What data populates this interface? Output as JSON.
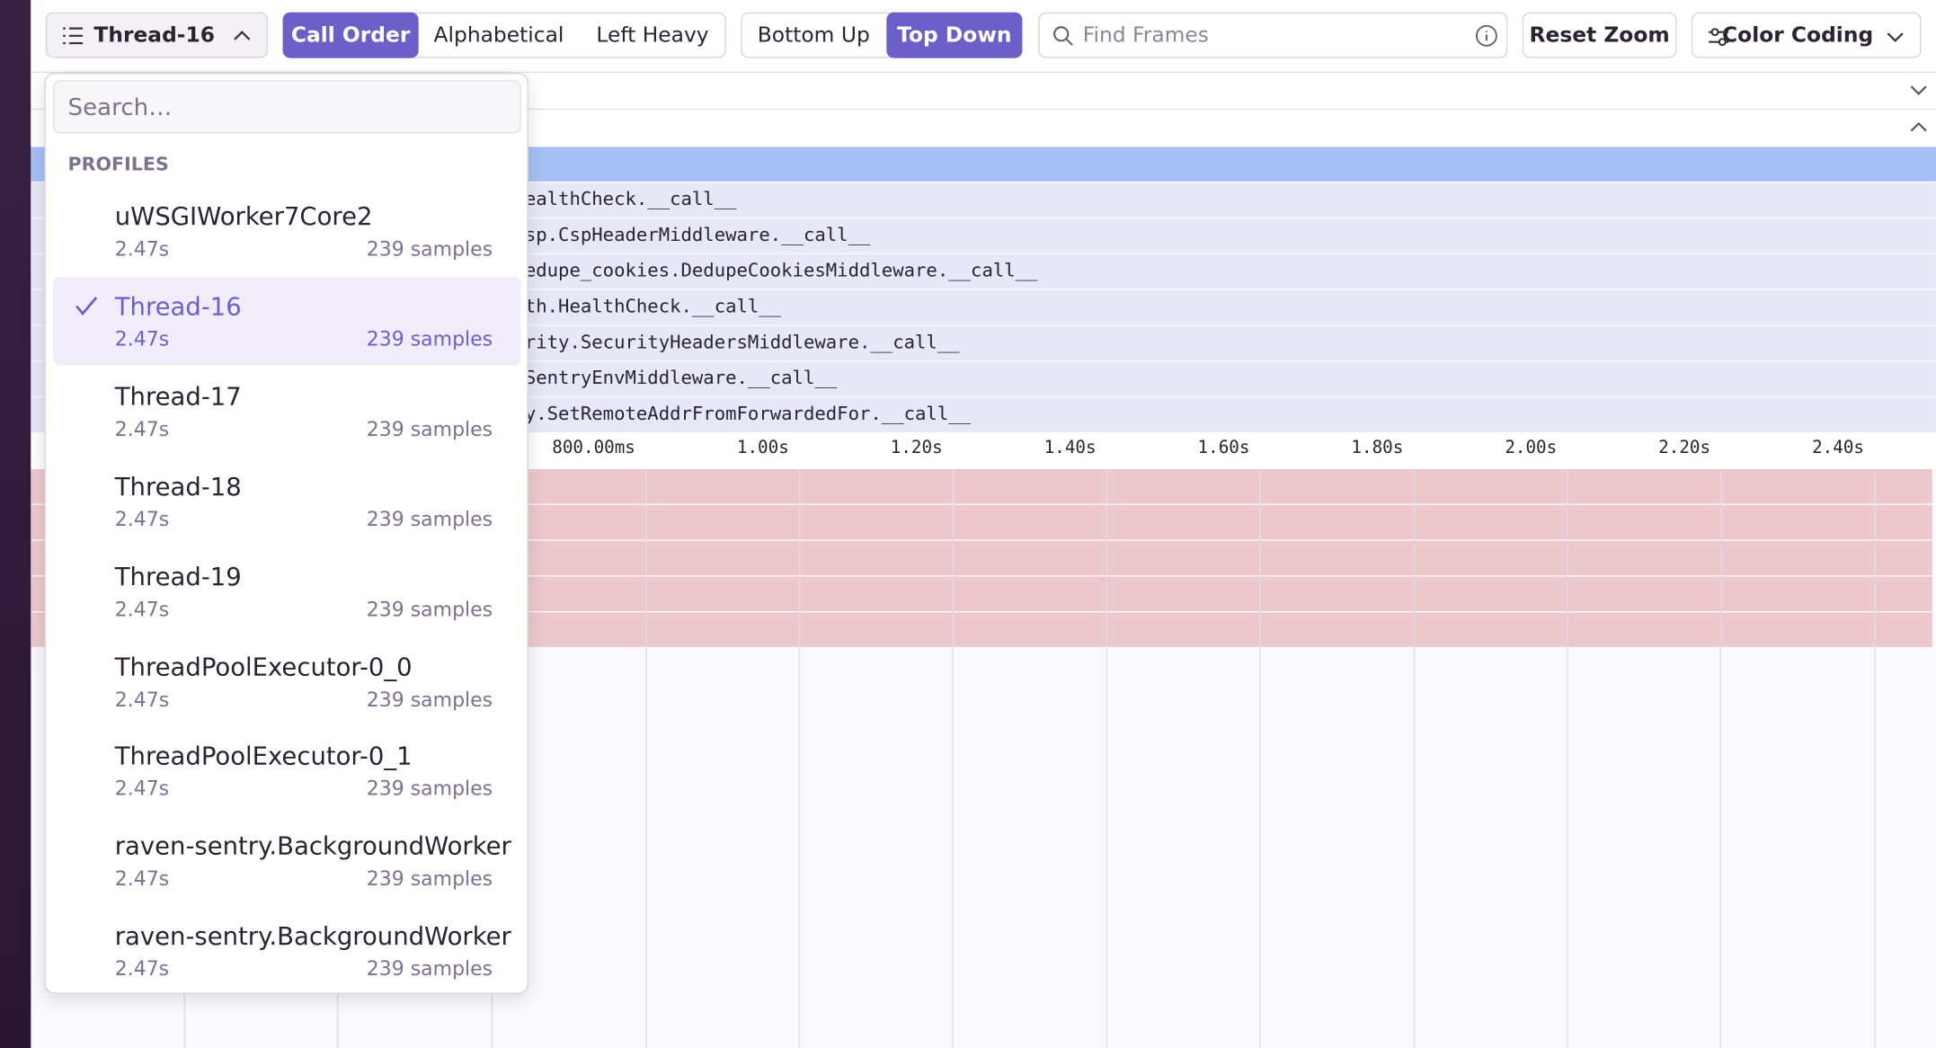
{
  "toolbar": {
    "thread_button": "Thread-16",
    "sort_options": [
      "Call Order",
      "Alphabetical",
      "Left Heavy"
    ],
    "selected_sort": 0,
    "view_options": [
      "Bottom Up",
      "Top Down"
    ],
    "selected_view": 1,
    "search_placeholder": "Find Frames",
    "reset_zoom": "Reset Zoom",
    "color_coding": "Color Coding"
  },
  "dropdown": {
    "search_placeholder": "Search…",
    "section_label": "PROFILES",
    "selected": 1,
    "profiles": [
      {
        "name": "uWSGIWorker7Core2",
        "duration": "2.47s",
        "samples": "239 samples"
      },
      {
        "name": "Thread-16",
        "duration": "2.47s",
        "samples": "239 samples"
      },
      {
        "name": "Thread-17",
        "duration": "2.47s",
        "samples": "239 samples"
      },
      {
        "name": "Thread-18",
        "duration": "2.47s",
        "samples": "239 samples"
      },
      {
        "name": "Thread-19",
        "duration": "2.47s",
        "samples": "239 samples"
      },
      {
        "name": "ThreadPoolExecutor-0_0",
        "duration": "2.47s",
        "samples": "239 samples"
      },
      {
        "name": "ThreadPoolExecutor-0_1",
        "duration": "2.47s",
        "samples": "239 samples"
      },
      {
        "name": "raven-sentry.BackgroundWorker",
        "duration": "2.47s",
        "samples": "239 samples"
      },
      {
        "name": "raven-sentry.BackgroundWorker",
        "duration": "2.47s",
        "samples": "239 samples"
      }
    ]
  },
  "flamegraph": {
    "frames": [
      "ealthCheck.__call__",
      "sp.CspHeaderMiddleware.__call__",
      "edupe_cookies.DedupeCookiesMiddleware.__call__",
      "th.HealthCheck.__call__",
      "rity.SecurityHeadersMiddleware.__call__",
      "SentryEnvMiddleware.__call__",
      "y.SetRemoteAddrFromForwardedFor.__call__"
    ]
  },
  "timeline": {
    "xlim": [
      0,
      2.5
    ],
    "xticks": [
      {
        "value": 0.8,
        "label": "800.00ms"
      },
      {
        "value": 1.0,
        "label": "1.00s"
      },
      {
        "value": 1.2,
        "label": "1.20s"
      },
      {
        "value": 1.4,
        "label": "1.40s"
      },
      {
        "value": 1.6,
        "label": "1.60s"
      },
      {
        "value": 1.8,
        "label": "1.80s"
      },
      {
        "value": 2.0,
        "label": "2.00s"
      },
      {
        "value": 2.2,
        "label": "2.20s"
      },
      {
        "value": 2.4,
        "label": "2.40s"
      }
    ]
  }
}
